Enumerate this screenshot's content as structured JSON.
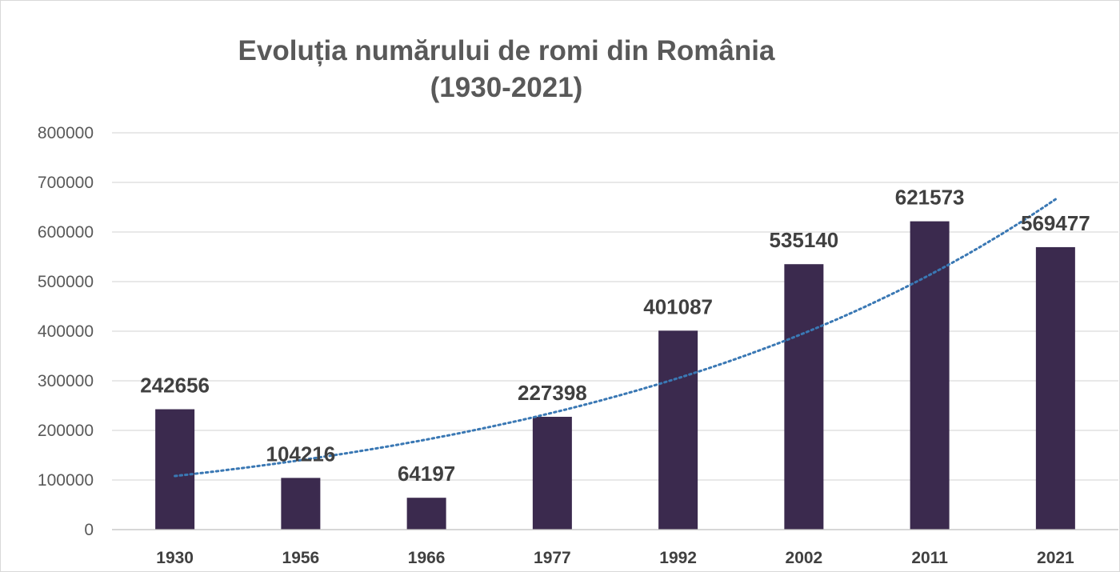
{
  "chart_data": {
    "type": "bar",
    "title_line1": "Evoluția numărului de romi din România",
    "title_line2": "(1930-2021)",
    "xlabel": "",
    "ylabel": "",
    "ylim": [
      0,
      800000
    ],
    "yticks": [
      "0",
      "100000",
      "200000",
      "300000",
      "400000",
      "500000",
      "600000",
      "700000",
      "800000"
    ],
    "categories": [
      "1930",
      "1956",
      "1966",
      "1977",
      "1992",
      "2002",
      "2011",
      "2021"
    ],
    "values": [
      242656,
      104216,
      64197,
      227398,
      401087,
      535140,
      621573,
      569477
    ],
    "data_labels": [
      "242656",
      "104216",
      "64197",
      "227398",
      "401087",
      "535140",
      "621573",
      "569477"
    ],
    "trendline": {
      "type": "exponential",
      "style": "dotted",
      "values": [
        108000,
        140000,
        182000,
        236000,
        305000,
        396000,
        513000,
        666000
      ]
    },
    "grid": true,
    "legend": "none",
    "colors": {
      "bar": "#3b2a4e",
      "trendline": "#3a78b4",
      "grid": "#d9d9d9",
      "axis": "#bfbfbf"
    }
  }
}
